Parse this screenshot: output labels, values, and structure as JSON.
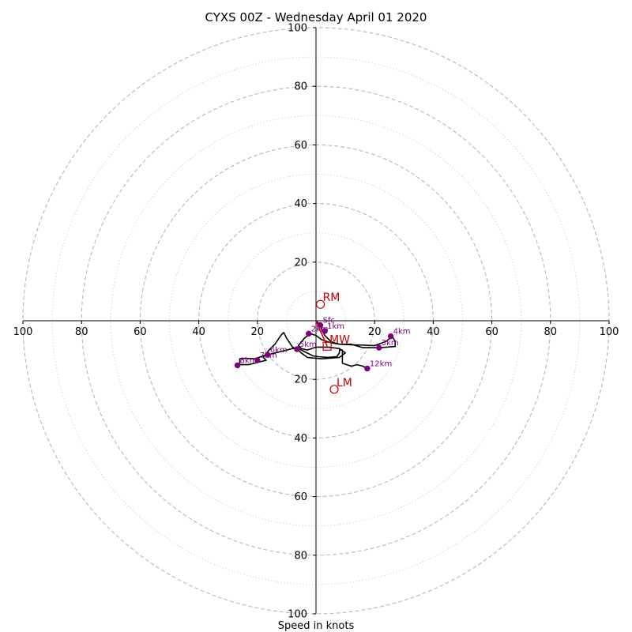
{
  "chart_data": {
    "type": "hodograph",
    "title": "CYXS 00Z - Wednesday April 01 2020",
    "xlabel": "Speed in knots",
    "units": "knots",
    "range": [
      -100,
      100
    ],
    "ring_step_dashed": 20,
    "ring_step_dotted": 10,
    "x_ticks": [
      {
        "pos": -100,
        "label": "100"
      },
      {
        "pos": -80,
        "label": "80"
      },
      {
        "pos": -60,
        "label": "60"
      },
      {
        "pos": -40,
        "label": "40"
      },
      {
        "pos": -20,
        "label": "20"
      },
      {
        "pos": 20,
        "label": "20"
      },
      {
        "pos": 40,
        "label": "40"
      },
      {
        "pos": 60,
        "label": "60"
      },
      {
        "pos": 80,
        "label": "80"
      },
      {
        "pos": 100,
        "label": "100"
      }
    ],
    "y_ticks": [
      {
        "pos": 100,
        "label": "100"
      },
      {
        "pos": 80,
        "label": "80"
      },
      {
        "pos": 60,
        "label": "60"
      },
      {
        "pos": 40,
        "label": "40"
      },
      {
        "pos": 20,
        "label": "20"
      },
      {
        "pos": -20,
        "label": "20"
      },
      {
        "pos": -40,
        "label": "40"
      },
      {
        "pos": -60,
        "label": "60"
      },
      {
        "pos": -80,
        "label": "80"
      },
      {
        "pos": -100,
        "label": "100"
      }
    ],
    "trace": [
      [
        0,
        0
      ],
      [
        1,
        -1
      ],
      [
        2,
        -3
      ],
      [
        3,
        -5
      ],
      [
        4,
        -6
      ],
      [
        5,
        -7
      ],
      [
        6,
        -7.5
      ],
      [
        8,
        -8
      ],
      [
        12,
        -8.2
      ],
      [
        16,
        -8.3
      ],
      [
        20,
        -8.5
      ],
      [
        24,
        -7
      ],
      [
        26,
        -5.3
      ],
      [
        27,
        -7
      ],
      [
        27,
        -8.8
      ],
      [
        22,
        -9.2
      ],
      [
        16,
        -9.2
      ],
      [
        12,
        -8
      ],
      [
        8,
        -8
      ],
      [
        5,
        -7.5
      ],
      [
        2,
        -6.5
      ],
      [
        0,
        -5
      ],
      [
        -2,
        -4.4
      ],
      [
        -4,
        -6
      ],
      [
        -6,
        -8.5
      ],
      [
        -5,
        -9.5
      ],
      [
        -3,
        -10
      ],
      [
        0,
        -9
      ],
      [
        4,
        -9
      ],
      [
        8,
        -9.5
      ],
      [
        10,
        -11
      ],
      [
        8,
        -12.5
      ],
      [
        2,
        -13
      ],
      [
        -3,
        -12.5
      ],
      [
        -5,
        -11
      ],
      [
        -6,
        -10
      ],
      [
        -8,
        -9
      ],
      [
        -10,
        -6
      ],
      [
        -11,
        -4
      ],
      [
        -12,
        -5
      ],
      [
        -14,
        -8
      ],
      [
        -16,
        -10
      ],
      [
        -18,
        -12.5
      ],
      [
        -17,
        -13.5
      ],
      [
        -19,
        -14
      ],
      [
        -23,
        -15
      ],
      [
        -26,
        -15
      ],
      [
        -26,
        -13
      ],
      [
        -24,
        -12.8
      ],
      [
        -21,
        -13
      ],
      [
        -18,
        -12
      ],
      [
        -14,
        -11
      ],
      [
        -10,
        -10
      ],
      [
        -8,
        -9.5
      ],
      [
        -6,
        -9.5
      ],
      [
        -4,
        -10.5
      ],
      [
        -1,
        -12
      ],
      [
        1,
        -12.3
      ],
      [
        4,
        -12.5
      ],
      [
        7,
        -12.3
      ],
      [
        8,
        -11
      ],
      [
        8,
        -10
      ],
      [
        9,
        -10
      ],
      [
        9,
        -11.5
      ],
      [
        9,
        -14.5
      ],
      [
        12,
        -15.5
      ],
      [
        14,
        -15
      ],
      [
        16,
        -15.5
      ],
      [
        17.5,
        -16.3
      ]
    ],
    "height_points": [
      {
        "label": "Sfc",
        "u": 1.5,
        "v": -1.5
      },
      {
        "label": "2km",
        "u": -2.5,
        "v": -4.4
      },
      {
        "label": "1km",
        "u": 3,
        "v": -3.5
      },
      {
        "label": "3km",
        "u": 21.5,
        "v": -9.2
      },
      {
        "label": "4km",
        "u": 25.5,
        "v": -5.3
      },
      {
        "label": "5km",
        "u": -6.5,
        "v": -9.7
      },
      {
        "label": "6km",
        "u": -16.5,
        "v": -11.6
      },
      {
        "label": "7km",
        "u": -20,
        "v": -13.5
      },
      {
        "label": "8km",
        "u": -26.8,
        "v": -15.2
      },
      {
        "label": "12km",
        "u": 17.5,
        "v": -16.3
      }
    ],
    "storm_motion": [
      {
        "label": "RM",
        "u": 1.5,
        "v": 5.6
      },
      {
        "label": "MW",
        "u": 3.8,
        "v": -8.7
      },
      {
        "label": "LM",
        "u": 6.2,
        "v": -23.4
      }
    ],
    "colors": {
      "trace": "#000000",
      "height_points": "#800080",
      "storm_motion": "#cc0000",
      "ring_dashed": "#b8b8b8",
      "ring_dotted": "#cfcfcf"
    }
  }
}
